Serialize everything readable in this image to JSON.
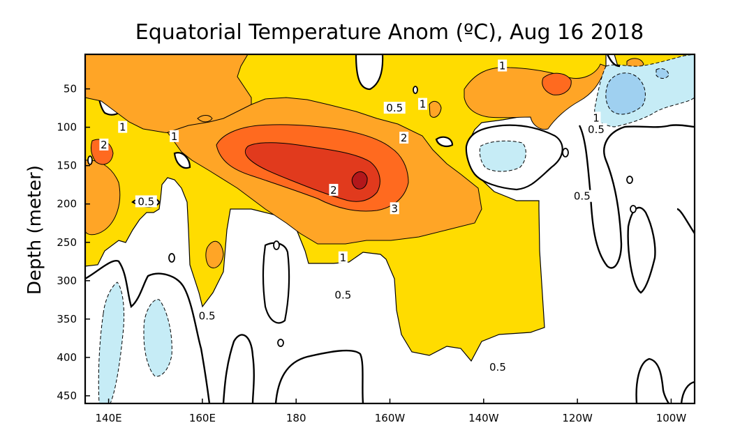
{
  "chart_data": {
    "type": "contour",
    "title": "Equatorial Temperature Anom (ºC), Aug 16 2018",
    "xlabel": "",
    "ylabel": "Depth (meter)",
    "x_ticks": [
      {
        "value": 140,
        "label": "140E"
      },
      {
        "value": 160,
        "label": "160E"
      },
      {
        "value": 180,
        "label": "180"
      },
      {
        "value": 200,
        "label": "160W"
      },
      {
        "value": 220,
        "label": "140W"
      },
      {
        "value": 240,
        "label": "120W"
      },
      {
        "value": 260,
        "label": "100W"
      }
    ],
    "y_ticks": [
      50,
      100,
      150,
      200,
      250,
      300,
      350,
      400,
      450
    ],
    "xlim": [
      135,
      265
    ],
    "ylim": [
      460,
      5
    ],
    "contour_levels": [
      -1,
      -0.5,
      0.5,
      1,
      2,
      3
    ],
    "fill_colors": {
      "neg_1": "#9fd0f0",
      "neg_0_5": "#c6ecf6",
      "pos_0_5": "#ffdc00",
      "pos_1": "#ffa526",
      "pos_2": "#ff6a1f",
      "pos_3": "#d11f1f"
    },
    "contour_labels": [
      {
        "text": "1",
        "x": 143,
        "y": 100
      },
      {
        "text": "2",
        "x": 139,
        "y": 123
      },
      {
        "text": "1",
        "x": 154,
        "y": 112
      },
      {
        "text": "0.5",
        "x": 148,
        "y": 197
      },
      {
        "text": "0.5",
        "x": 161,
        "y": 346
      },
      {
        "text": "0.5",
        "x": 190,
        "y": 319
      },
      {
        "text": "1",
        "x": 190,
        "y": 270
      },
      {
        "text": "2",
        "x": 188,
        "y": 182
      },
      {
        "text": "3",
        "x": 201,
        "y": 206
      },
      {
        "text": "2",
        "x": 203,
        "y": 114
      },
      {
        "text": "0.5",
        "x": 201,
        "y": 75
      },
      {
        "text": "1",
        "x": 207,
        "y": 70
      },
      {
        "text": "1",
        "x": 224,
        "y": 20
      },
      {
        "text": "1",
        "x": 244,
        "y": 88
      },
      {
        "text": "0.5",
        "x": 244,
        "y": 103
      },
      {
        "text": "0.5",
        "x": 241,
        "y": 190
      },
      {
        "text": "0.5",
        "x": 223,
        "y": 413
      }
    ],
    "regions": [
      {
        "level": "pos_0_5",
        "description": "warm anomaly > 0.5 covering 0-300 m west, 0-400 m central"
      },
      {
        "level": "pos_1",
        "description": "warm anomaly > 1 from 135E to 110W, 0-250 m"
      },
      {
        "level": "pos_2",
        "description": "warm core > 2 near 170W-180, 100-220 m"
      },
      {
        "level": "pos_3",
        "description": "core > 3 near 165W, 140-180 m"
      },
      {
        "level": "neg_0_5",
        "description": "cool anomalies near 140E-150E at depth and 125W at 130 m, east surface"
      },
      {
        "level": "neg_1",
        "description": "cool anomaly < -1 near 105W, 20-100 m"
      }
    ]
  }
}
